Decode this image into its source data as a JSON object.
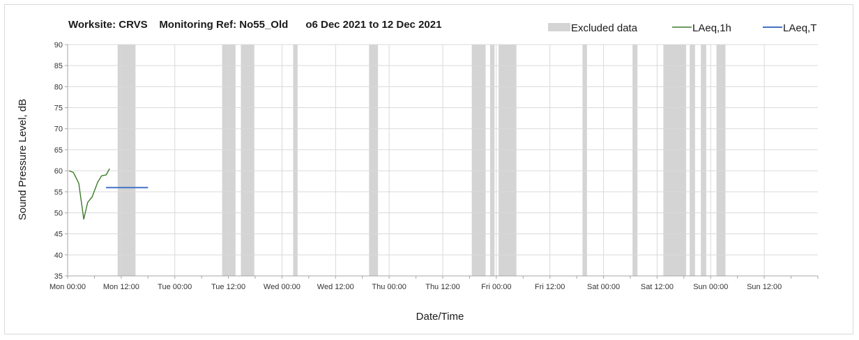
{
  "chart_data": {
    "type": "line",
    "title": "Worksite: CRVS    Monitoring Ref: No55_Old      o6 Dec 2021 to 12 Dec 2021",
    "xlabel": "Date/Time",
    "ylabel": "Sound Pressure Level, dB",
    "ylim": [
      35,
      90
    ],
    "yticks": [
      35,
      40,
      45,
      50,
      55,
      60,
      65,
      70,
      75,
      80,
      85,
      90
    ],
    "xlim_hours": [
      0,
      168
    ],
    "xticks": [
      {
        "label": "Mon 00:00",
        "hour": 0
      },
      {
        "label": "Mon 12:00",
        "hour": 12
      },
      {
        "label": "Tue 00:00",
        "hour": 24
      },
      {
        "label": "Tue 12:00",
        "hour": 36
      },
      {
        "label": "Wed 00:00",
        "hour": 48
      },
      {
        "label": "Wed 12:00",
        "hour": 60
      },
      {
        "label": "Thu 00:00",
        "hour": 72
      },
      {
        "label": "Thu 12:00",
        "hour": 84
      },
      {
        "label": "Fri 00:00",
        "hour": 96
      },
      {
        "label": "Fri 12:00",
        "hour": 108
      },
      {
        "label": "Sat 00:00",
        "hour": 120
      },
      {
        "label": "Sat 12:00",
        "hour": 132
      },
      {
        "label": "Sun 00:00",
        "hour": 144
      },
      {
        "label": "Sun 12:00",
        "hour": 156
      }
    ],
    "grid": true,
    "legend_position": "top-right",
    "legend": [
      {
        "name": "Excluded data",
        "kind": "band",
        "color": "#d4d4d4"
      },
      {
        "name": "LAeq,1h",
        "kind": "line",
        "color": "#3b7a2a"
      },
      {
        "name": "LAeq,T",
        "kind": "line",
        "color": "#4472c4"
      }
    ],
    "series": [
      {
        "name": "LAeq,1h",
        "color": "#3b7a2a",
        "points": [
          {
            "x": 0.3,
            "y": 60.0
          },
          {
            "x": 1.3,
            "y": 59.6
          },
          {
            "x": 2.5,
            "y": 57.0
          },
          {
            "x": 3.6,
            "y": 48.5
          },
          {
            "x": 4.5,
            "y": 52.5
          },
          {
            "x": 5.5,
            "y": 53.8
          },
          {
            "x": 6.7,
            "y": 57.2
          },
          {
            "x": 7.6,
            "y": 58.8
          },
          {
            "x": 8.6,
            "y": 59.0
          },
          {
            "x": 9.4,
            "y": 60.5
          }
        ]
      },
      {
        "name": "LAeq,T",
        "color": "#4472c4",
        "points": [
          {
            "x": 8.6,
            "y": 56.0
          },
          {
            "x": 18.0,
            "y": 56.0
          }
        ]
      }
    ],
    "excluded_ranges": [
      [
        11.2,
        15.2
      ],
      [
        34.6,
        37.6
      ],
      [
        38.8,
        41.8
      ],
      [
        50.5,
        51.5
      ],
      [
        67.5,
        69.5
      ],
      [
        90.5,
        93.6
      ],
      [
        94.6,
        95.6
      ],
      [
        96.5,
        100.5
      ],
      [
        115.3,
        116.3
      ],
      [
        126.5,
        127.6
      ],
      [
        133.4,
        138.5
      ],
      [
        139.3,
        140.5
      ],
      [
        141.8,
        143.0
      ],
      [
        145.3,
        147.3
      ]
    ]
  }
}
